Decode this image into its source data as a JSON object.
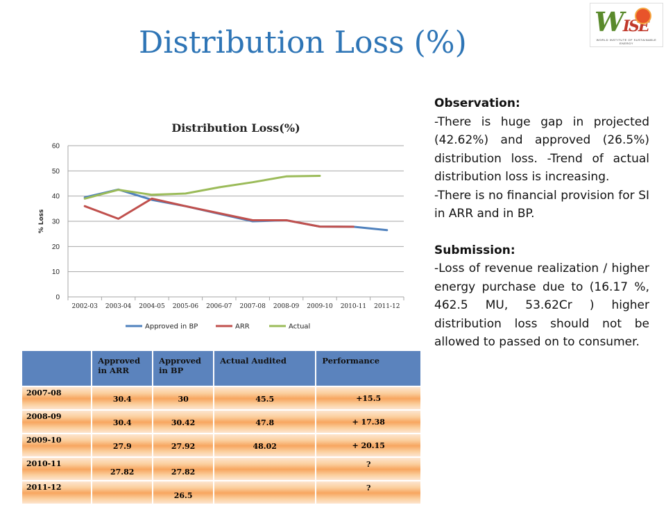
{
  "slide": {
    "title": "Distribution Loss (%)"
  },
  "logo": {
    "mark": "WISE",
    "tagline": "WORLD INSTITUTE OF SUSTAINABLE ENERGY"
  },
  "chart_data": {
    "type": "line",
    "title": "Distribution Loss(%)",
    "xlabel": "",
    "ylabel": "% Loss",
    "ylim": [
      0,
      60
    ],
    "yticks": [
      0,
      10,
      20,
      30,
      40,
      50,
      60
    ],
    "categories": [
      "2002-03",
      "2003-04",
      "2004-05",
      "2005-06",
      "2006-07",
      "2007-08",
      "2008-09",
      "2009-10",
      "2010-11",
      "2011-12"
    ],
    "grid": true,
    "legend_position": "bottom",
    "series": [
      {
        "name": "Approved in BP",
        "color": "#4f81bd",
        "values": [
          39.5,
          42.6,
          38.5,
          36,
          33,
          30,
          30.42,
          27.92,
          27.82,
          26.5
        ]
      },
      {
        "name": "ARR",
        "color": "#c0504d",
        "values": [
          36,
          31,
          39,
          36,
          33.2,
          30.4,
          30.4,
          27.9,
          27.82,
          null
        ]
      },
      {
        "name": "Actual",
        "color": "#9bbb59",
        "values": [
          39,
          42.5,
          40.5,
          41,
          43.5,
          45.5,
          47.8,
          48.02,
          null,
          null
        ]
      }
    ]
  },
  "observation": {
    "heading": "Observation:",
    "p1": "-There is huge gap in projected (42.62%) and approved (26.5%) distribution loss. -Trend of actual distribution loss is increasing.",
    "p2": "-There is no financial  provision for SI in ARR and in BP."
  },
  "submission": {
    "heading": "Submission:",
    "p1": "-Loss of revenue realization / higher energy purchase due to (16.17 %, 462.5 MU, 53.62Cr ) higher distribution loss should not be allowed to passed on to consumer."
  },
  "table": {
    "headers": [
      "",
      "Approved in ARR",
      "Approved in BP",
      "Actual Audited",
      "Performance"
    ],
    "rows": [
      {
        "year": "2007-08",
        "arr": "30.4",
        "bp": "30",
        "actual": "45.5",
        "perf": "+15.5"
      },
      {
        "year": "2008-09",
        "arr": "30.4",
        "bp": "30.42",
        "actual": "47.8",
        "perf": "+ 17.38"
      },
      {
        "year": "2009-10",
        "arr": "27.9",
        "bp": "27.92",
        "actual": "48.02",
        "perf": "+ 20.15"
      },
      {
        "year": "2010-11",
        "arr": "27.82",
        "bp": "27.82",
        "actual": "",
        "perf": "?"
      },
      {
        "year": "2011-12",
        "arr": "",
        "bp": "26.5",
        "actual": "",
        "perf": "?"
      }
    ]
  }
}
